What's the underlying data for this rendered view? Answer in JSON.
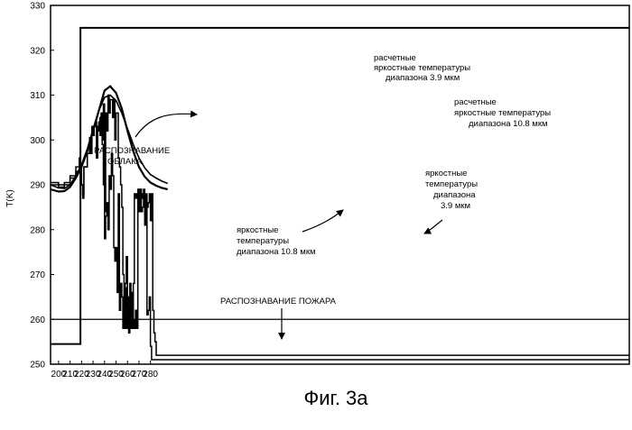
{
  "chart_data": {
    "type": "line",
    "title": "",
    "caption": "Фиг. 3а",
    "xlabel": "",
    "ylabel": "T(K)",
    "xlim": [
      193,
      697
    ],
    "ylim": [
      250,
      330
    ],
    "grid": false,
    "xticks": [
      200,
      210,
      220,
      230,
      240,
      250,
      260,
      270,
      280
    ],
    "yticks": [
      250,
      260,
      270,
      280,
      290,
      300,
      310,
      320,
      330
    ],
    "series": [
      {
        "name": "расчетные яркостные температуры диапазона 3.9 мкм",
        "step": false,
        "x": [
          193,
          200,
          205,
          210,
          215,
          220,
          225,
          230,
          235,
          240,
          245,
          250,
          255,
          260,
          265,
          270,
          275,
          280,
          285,
          290,
          295
        ],
        "y": [
          289,
          288.5,
          288.6,
          289.5,
          291.5,
          294,
          297.5,
          302,
          306.5,
          311,
          312,
          310.5,
          307,
          302,
          297.5,
          294,
          291.8,
          290.5,
          289.8,
          289.3,
          289
        ]
      },
      {
        "name": "расчетные яркостные температуры диапазона 10.8 мкм",
        "step": false,
        "x": [
          193,
          200,
          205,
          210,
          215,
          220,
          225,
          230,
          235,
          240,
          245,
          250,
          255,
          260,
          265,
          270,
          275,
          280,
          285,
          290,
          295
        ],
        "y": [
          290,
          289.3,
          289.2,
          290,
          292,
          294.5,
          298,
          302.5,
          306.5,
          309.5,
          310,
          308.8,
          306,
          302.5,
          299,
          296,
          293.8,
          292.3,
          291.5,
          290.8,
          290.3
        ]
      },
      {
        "name": "яркостные температуры диапазона 3.9 мкм",
        "step": true,
        "x": [
          193,
          200,
          205,
          210,
          215,
          218,
          219,
          220,
          221,
          222,
          225,
          227,
          228,
          229,
          230,
          232,
          233,
          234,
          236,
          237,
          238,
          239,
          240,
          241,
          242,
          243,
          244,
          245,
          247,
          248,
          249,
          250,
          252,
          253,
          254,
          255,
          256,
          257,
          258,
          259,
          260,
          261,
          262,
          263,
          264,
          265,
          266,
          267,
          268,
          269,
          270,
          271,
          272,
          273,
          274,
          275,
          276,
          277,
          278,
          279,
          280,
          281,
          282,
          283,
          284,
          285,
          286,
          287
        ],
        "y": [
          290,
          289.5,
          290,
          291.5,
          293,
          295,
          293,
          290,
          287,
          294,
          297,
          300.5,
          297,
          302,
          303,
          304,
          296,
          303,
          305,
          306,
          300,
          308,
          284,
          306,
          302,
          310,
          306,
          309,
          305,
          309,
          300,
          306,
          296,
          294,
          290,
          285,
          270,
          258,
          268,
          274,
          261,
          258,
          268,
          258,
          266,
          260,
          258,
          262,
          258,
          289,
          284,
          289,
          288,
          287,
          289,
          281,
          288,
          285,
          286,
          288,
          282,
          288,
          262,
          257,
          255,
          252,
          252,
          252
        ]
      },
      {
        "name": "яркостные температуры диапазона 10.8 мкм",
        "step": true,
        "x": [
          193,
          200,
          205,
          210,
          215,
          218,
          219,
          220,
          221,
          222,
          225,
          227,
          228,
          229,
          230,
          231,
          232,
          233,
          234,
          235,
          236,
          237,
          238,
          239,
          240,
          241,
          242,
          243,
          244,
          245,
          246,
          247,
          248,
          249,
          250,
          251,
          252,
          253,
          254,
          255,
          256,
          257,
          258,
          259,
          260,
          261,
          262,
          263,
          264,
          265,
          266,
          267,
          268,
          269,
          270,
          271,
          272,
          273,
          274,
          275,
          276,
          277,
          278,
          279,
          280,
          281,
          282,
          283,
          284,
          285,
          286,
          287
        ],
        "y": [
          290.5,
          290,
          290.5,
          292,
          294,
          296,
          294,
          290,
          288,
          294,
          297,
          299,
          298,
          303,
          301,
          303,
          304,
          296,
          302,
          304,
          301,
          305,
          299,
          290,
          278,
          283,
          286,
          280,
          292,
          289,
          297,
          292,
          276,
          273,
          276,
          266,
          288,
          262,
          268,
          265,
          258,
          263,
          267,
          258,
          265,
          257,
          262,
          264,
          258,
          268,
          288,
          287,
          288,
          284,
          288,
          289,
          284,
          285,
          288,
          286,
          287,
          261,
          262,
          265,
          254,
          251,
          251,
          251,
          251,
          251,
          251,
          251
        ]
      },
      {
        "name": "",
        "step": true,
        "x": [
          193,
          218,
          219,
          697
        ],
        "y": [
          254.5,
          254.5,
          325,
          325
        ]
      }
    ],
    "threshold": {
      "y": 260
    },
    "annotations": {
      "cloud": [
        "РАСПОЗНАВАНИЕ",
        "ОБЛАКА"
      ],
      "fire": "РАСПОЗНАВАНИЕ ПОЖАРА",
      "calc39": [
        "расчетные",
        "яркостные температуры",
        "диапазона  3.9 мкм"
      ],
      "calc108": [
        "расчетные",
        "яркостные температуры",
        "диапазона  10.8 мкм"
      ],
      "meas39": [
        "яркостные",
        "температуры",
        "диапазона",
        "3.9 мкм"
      ],
      "meas108": [
        "яркостные",
        "температуры",
        "диапазона 10.8 мкм"
      ]
    }
  }
}
